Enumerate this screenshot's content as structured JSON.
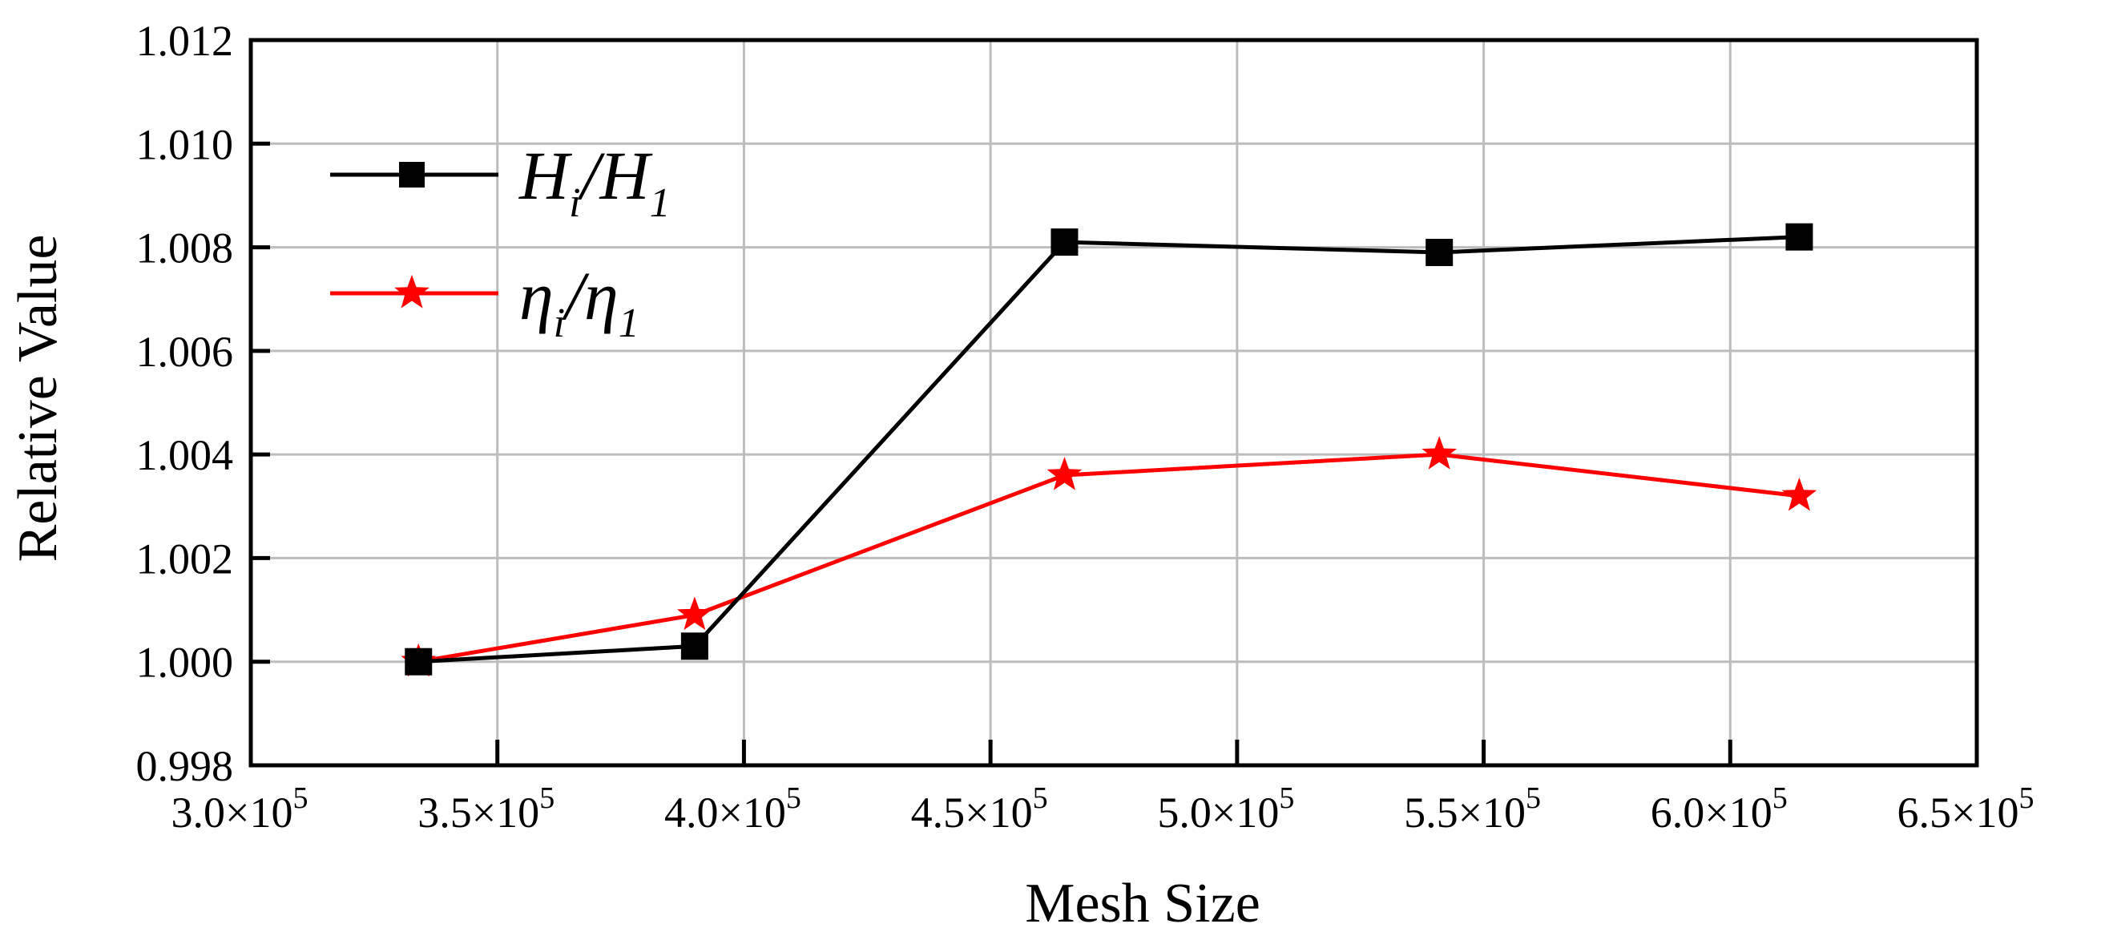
{
  "chart_data": {
    "type": "line",
    "xlabel": "Mesh Size",
    "ylabel": "Relative Value",
    "xlim": [
      300000,
      650000
    ],
    "ylim": [
      0.998,
      1.012
    ],
    "xticks": [
      300000,
      350000,
      400000,
      450000,
      500000,
      550000,
      600000,
      650000
    ],
    "xtick_labels": [
      {
        "mantissa": "3.0×10",
        "exp": "5"
      },
      {
        "mantissa": "3.5×10",
        "exp": "5"
      },
      {
        "mantissa": "4.0×10",
        "exp": "5"
      },
      {
        "mantissa": "4.5×10",
        "exp": "5"
      },
      {
        "mantissa": "5.0×10",
        "exp": "5"
      },
      {
        "mantissa": "5.5×10",
        "exp": "5"
      },
      {
        "mantissa": "6.0×10",
        "exp": "5"
      },
      {
        "mantissa": "6.5×10",
        "exp": "5"
      }
    ],
    "yticks": [
      0.998,
      1.0,
      1.002,
      1.004,
      1.006,
      1.008,
      1.01,
      1.012
    ],
    "ytick_labels": [
      "0.998",
      "1.000",
      "1.002",
      "1.004",
      "1.006",
      "1.008",
      "1.010",
      "1.012"
    ],
    "grid": true,
    "legend_position": "top-left",
    "series": [
      {
        "name": "Hi/H1",
        "color": "#000000",
        "marker": "square",
        "x": [
          334000,
          390000,
          465000,
          541000,
          614000
        ],
        "y": [
          1.0,
          1.0003,
          1.0081,
          1.0079,
          1.0082
        ]
      },
      {
        "name": "ηi/η1",
        "color": "#ff0000",
        "marker": "star",
        "x": [
          334000,
          390000,
          465000,
          541000,
          614000
        ],
        "y": [
          1.0,
          1.0009,
          1.0036,
          1.004,
          1.0032
        ]
      }
    ],
    "legend": [
      {
        "main": "H",
        "sub": "i",
        "sep": "/H",
        "sub2": "1"
      },
      {
        "main": "η",
        "sub": "i",
        "sep": "/η",
        "sub2": "1"
      }
    ]
  }
}
